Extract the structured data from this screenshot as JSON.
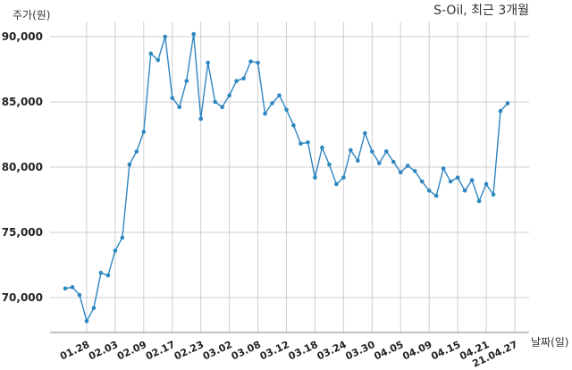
{
  "chart_data": {
    "type": "line",
    "title": "S-Oil, 최근 3개월",
    "ylabel": "주가(원)",
    "xlabel": "날짜(일)",
    "ylim": [
      67000,
      91000
    ],
    "y_ticks": [
      70000,
      75000,
      80000,
      85000,
      90000
    ],
    "y_tick_labels": [
      "70,000",
      "75,000",
      "80,000",
      "85,000",
      "90,000"
    ],
    "x_tick_labels": [
      "01.28",
      "02.03",
      "02.09",
      "02.17",
      "02.23",
      "03.02",
      "03.08",
      "03.12",
      "03.18",
      "03.24",
      "03.30",
      "04.05",
      "04.09",
      "04.15",
      "04.21",
      "21.04.27"
    ],
    "x_tick_indices": [
      3,
      7,
      11,
      15,
      19,
      23,
      27,
      31,
      35,
      39,
      43,
      47,
      51,
      55,
      59,
      63
    ],
    "grid": true,
    "line_color": "#2e86c1",
    "series": [
      {
        "values": [
          70700,
          70800,
          70200,
          68200,
          69200,
          71900,
          71700,
          73600,
          74600,
          80200,
          81200,
          82700,
          88700,
          88200,
          90000,
          85300,
          84600,
          86600,
          90200,
          83700,
          88000,
          85000,
          84600,
          85500,
          86600,
          86800,
          88100,
          88000,
          84100,
          84900,
          85500,
          84400,
          83200,
          81800,
          81900,
          79200,
          81500,
          80200,
          78700,
          79200,
          81300,
          80500,
          82600,
          81200,
          80300,
          81200,
          80400,
          79600,
          80100,
          79700,
          78900,
          78200,
          77800,
          79900,
          78900,
          79200,
          78200,
          79000,
          77400,
          78700,
          77900,
          84300,
          84900
        ]
      }
    ]
  }
}
